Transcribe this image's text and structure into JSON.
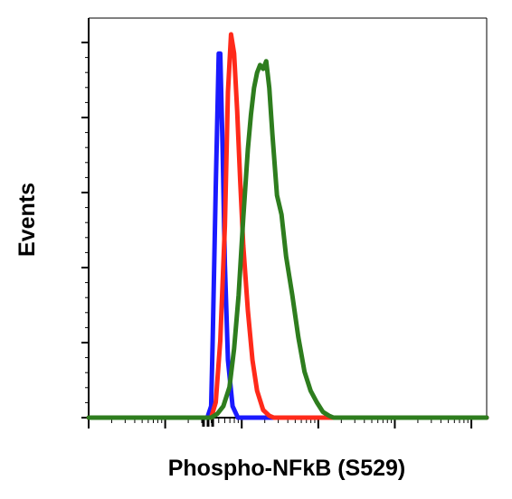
{
  "chart_data": {
    "type": "line",
    "title": "",
    "xlabel": "Phospho-NFkB (S529)",
    "ylabel": "Events",
    "x_scale": "log",
    "xlim": [
      -1,
      4.2
    ],
    "ylim": [
      0,
      100
    ],
    "grid": false,
    "legend": "none",
    "series": [
      {
        "color": "#1a1aff",
        "x": [
          -1,
          0.55,
          0.6,
          0.62,
          0.66,
          0.7,
          0.72,
          0.75,
          0.78,
          0.82,
          0.88,
          0.95,
          4.2
        ],
        "y": [
          0,
          0,
          3,
          20,
          60,
          95,
          95,
          70,
          40,
          15,
          3,
          0,
          0
        ]
      },
      {
        "color": "#ff2a1a",
        "x": [
          -1,
          0.6,
          0.66,
          0.72,
          0.78,
          0.82,
          0.86,
          0.9,
          0.94,
          0.98,
          1.02,
          1.08,
          1.14,
          1.2,
          1.28,
          1.36,
          1.42,
          4.2
        ],
        "y": [
          0,
          0,
          4,
          20,
          50,
          85,
          100,
          95,
          80,
          62,
          45,
          28,
          15,
          7,
          2,
          0.5,
          0,
          0
        ]
      },
      {
        "color": "#2e7d1e",
        "x": [
          -1,
          0.6,
          0.68,
          0.76,
          0.84,
          0.9,
          0.96,
          1.02,
          1.08,
          1.12,
          1.16,
          1.2,
          1.24,
          1.28,
          1.32,
          1.36,
          1.4,
          1.46,
          1.52,
          1.58,
          1.66,
          1.74,
          1.82,
          1.9,
          1.98,
          2.06,
          2.14,
          2.2,
          4.2
        ],
        "y": [
          0,
          0,
          1,
          3,
          8,
          18,
          32,
          52,
          70,
          79,
          86,
          90,
          92,
          91,
          93,
          86,
          74,
          58,
          53,
          42,
          32,
          21,
          12,
          7,
          4,
          1.5,
          0.5,
          0,
          0
        ]
      }
    ]
  }
}
